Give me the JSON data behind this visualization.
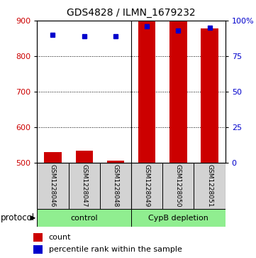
{
  "title": "GDS4828 / ILMN_1679232",
  "samples": [
    "GSM1228046",
    "GSM1228047",
    "GSM1228048",
    "GSM1228049",
    "GSM1228050",
    "GSM1228051"
  ],
  "bar_values": [
    530,
    533,
    506,
    900,
    900,
    878
  ],
  "bar_bottom": 500,
  "percentile_values": [
    90,
    89,
    89,
    96,
    93,
    95
  ],
  "ylim_left": [
    500,
    900
  ],
  "ylim_right": [
    0,
    100
  ],
  "yticks_left": [
    500,
    600,
    700,
    800,
    900
  ],
  "yticks_right": [
    0,
    25,
    50,
    75,
    100
  ],
  "bar_color": "#CC0000",
  "dot_color": "#0000CC",
  "bar_width": 0.55,
  "group1_name": "control",
  "group2_name": "CypB depletion",
  "group_color": "#90EE90",
  "protocol_label": "protocol",
  "legend_count_label": "count",
  "legend_pct_label": "percentile rank within the sample",
  "ytick_left_color": "#CC0000",
  "ytick_right_color": "#0000CC",
  "sample_box_color": "#D3D3D3"
}
